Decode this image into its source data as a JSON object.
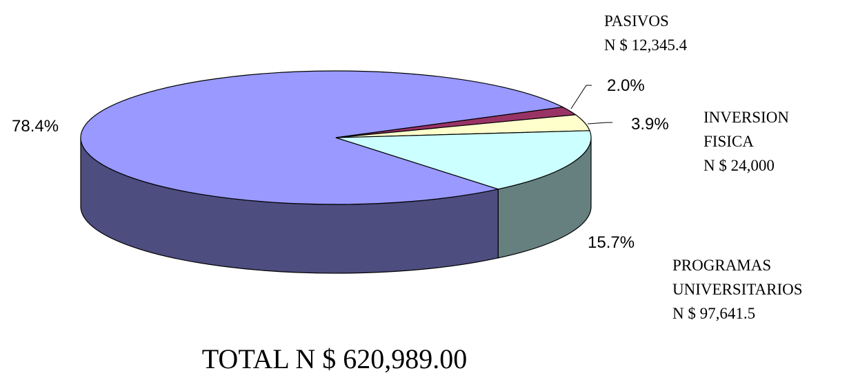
{
  "chart_data": {
    "type": "pie",
    "categories": [
      null,
      "PASIVOS",
      "INVERSION FISICA",
      "PROGRAMAS UNIVERSITARIOS"
    ],
    "values": [
      78.4,
      2.0,
      3.9,
      15.7
    ],
    "value_labels": [
      "78.4%",
      "2.0%",
      "3.9%",
      "15.7%"
    ],
    "amount_labels": [
      null,
      "N $ 12,345.4",
      "N $ 24,000",
      "N $ 97,641.5"
    ],
    "colors": [
      "#9999ff",
      "#993366",
      "#ffffcc",
      "#ccffff"
    ],
    "side_colors": [
      "#4d4d80",
      "#4d1a33",
      "#808066",
      "#668080"
    ],
    "total_label": "TOTAL N $ 620,989.00"
  }
}
